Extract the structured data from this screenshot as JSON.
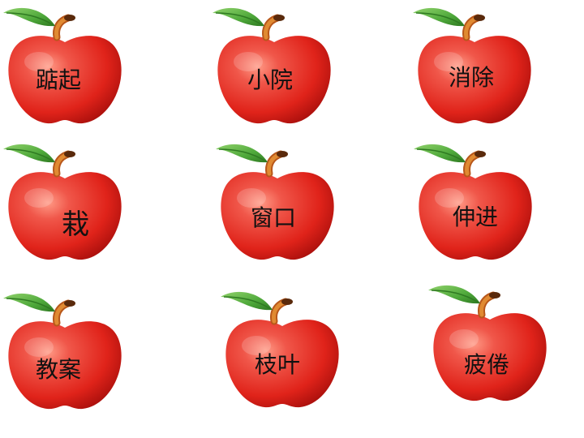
{
  "colors": {
    "apple_light": "#f0574a",
    "apple_mid": "#e0231a",
    "apple_dark": "#a80f0c",
    "leaf": "#4ea83a",
    "leaf_dark": "#2f7a22",
    "stem": "#d9721e",
    "text": "#111111"
  },
  "cards": [
    {
      "word": "踮起",
      "icon": "apple-icon"
    },
    {
      "word": "小院",
      "icon": "apple-icon"
    },
    {
      "word": "消除",
      "icon": "apple-icon"
    },
    {
      "word": "栽",
      "icon": "apple-icon"
    },
    {
      "word": "窗口",
      "icon": "apple-icon"
    },
    {
      "word": "伸进",
      "icon": "apple-icon"
    },
    {
      "word": "教案",
      "icon": "apple-icon"
    },
    {
      "word": "枝叶",
      "icon": "apple-icon"
    },
    {
      "word": "疲倦",
      "icon": "apple-icon"
    }
  ]
}
